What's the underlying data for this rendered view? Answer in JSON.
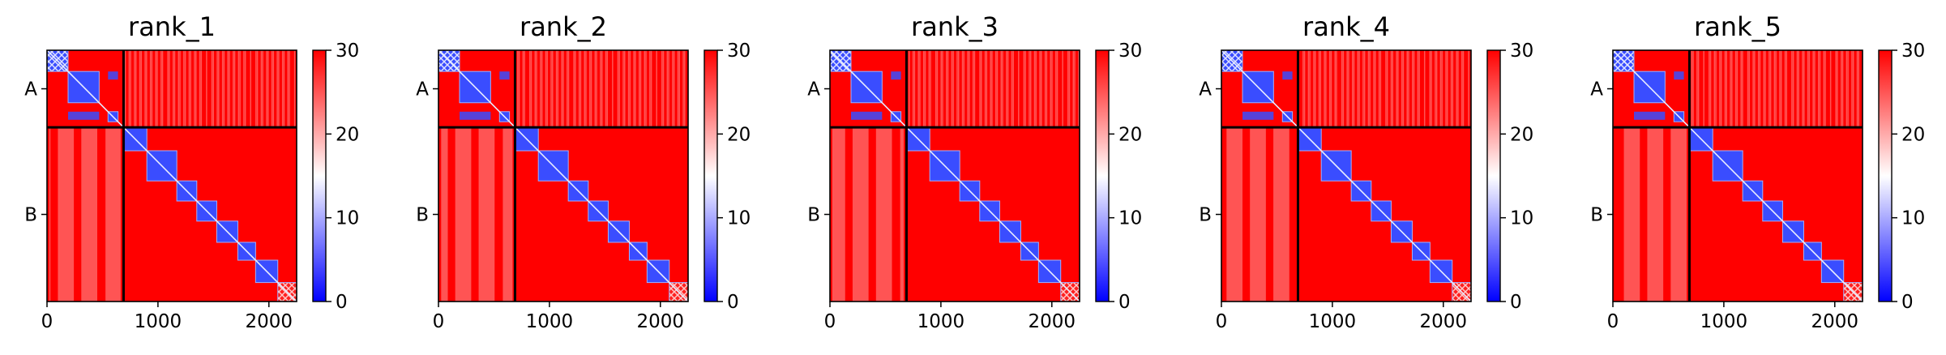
{
  "chart_data": {
    "type": "heatmap",
    "colorbar": {
      "min": 0,
      "max": 30,
      "ticks": [
        0,
        10,
        20,
        30
      ],
      "colors": {
        "low": "#0000ff",
        "mid": "#ffffff",
        "high": "#ff0000"
      }
    },
    "axis": {
      "x_range": [
        0,
        2250
      ],
      "x_ticks": [
        0,
        1000,
        2000
      ],
      "y_categories": [
        "A",
        "B"
      ],
      "boundary": 690
    },
    "panels": [
      {
        "title": "rank_1"
      },
      {
        "title": "rank_2"
      },
      {
        "title": "rank_3"
      },
      {
        "title": "rank_4"
      },
      {
        "title": "rank_5"
      }
    ]
  }
}
